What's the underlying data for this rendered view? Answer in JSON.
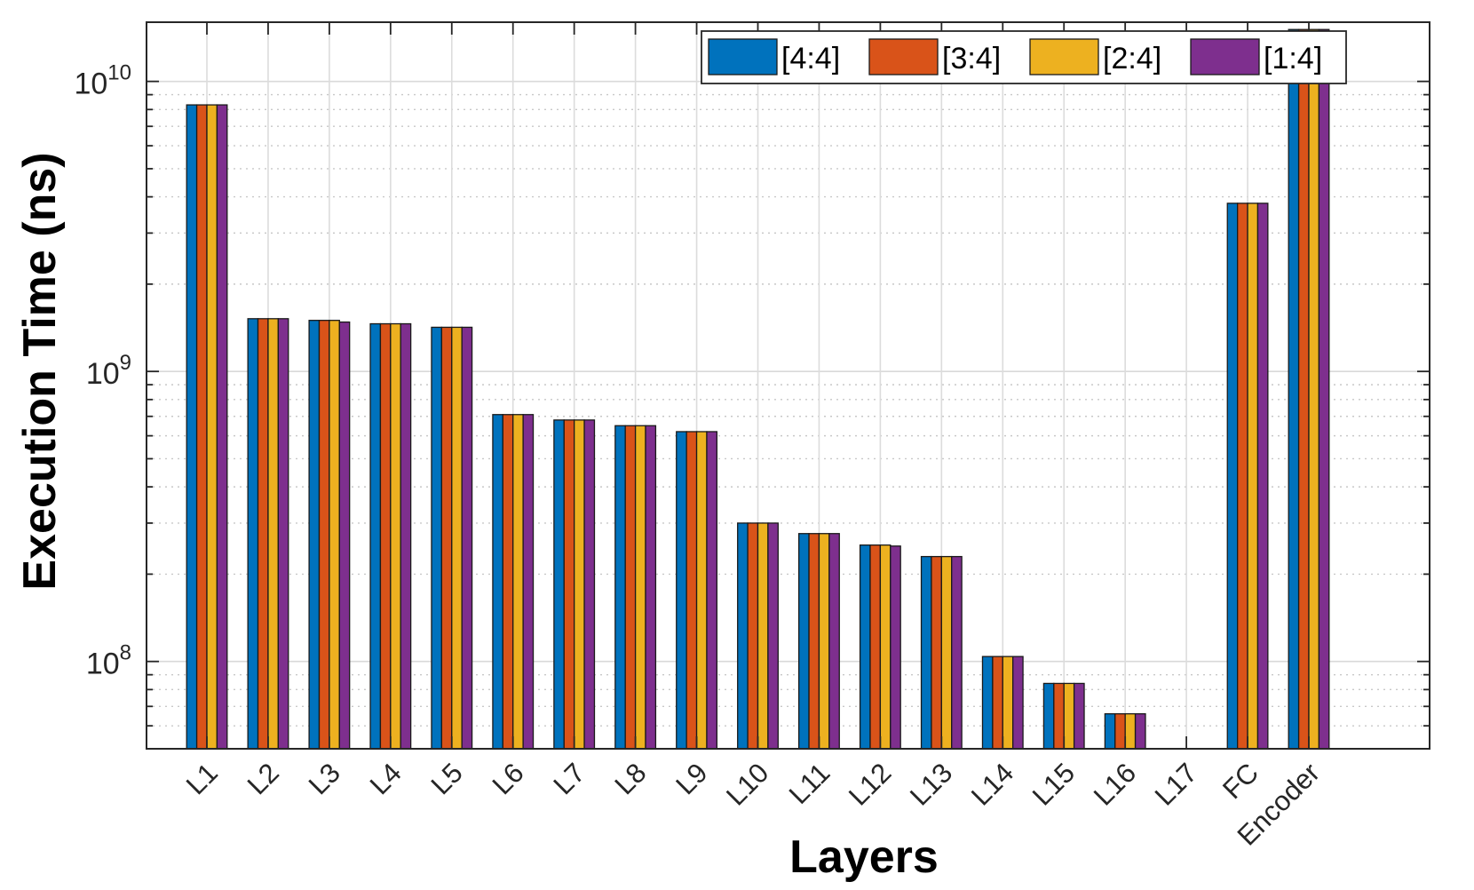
{
  "chart_data": {
    "type": "bar",
    "title": "",
    "xlabel": "Layers",
    "ylabel": "Execution Time (ns)",
    "yscale": "log",
    "ylim": [
      50000000,
      16000000000
    ],
    "ytick_labels": [
      {
        "value": 100000000,
        "base": "10",
        "exp": "8"
      },
      {
        "value": 1000000000,
        "base": "10",
        "exp": "9"
      },
      {
        "value": 10000000000,
        "base": "10",
        "exp": "10"
      }
    ],
    "grid": true,
    "legend_position": "top-right",
    "categories": [
      "L1",
      "L2",
      "L3",
      "L4",
      "L5",
      "L6",
      "L7",
      "L8",
      "L9",
      "L10",
      "L11",
      "L12",
      "L13",
      "L14",
      "L15",
      "L16",
      "L17",
      "FC",
      "Encoder"
    ],
    "series": [
      {
        "name": "[4:4]",
        "color": "#0072BD",
        "values": [
          8300000000,
          1520000000,
          1500000000,
          1460000000,
          1420000000,
          710000000,
          680000000,
          650000000,
          620000000,
          300000000,
          276000000,
          252000000,
          230000000,
          104000000,
          84000000,
          66000000,
          null,
          3800000000,
          15100000000
        ]
      },
      {
        "name": "[3:4]",
        "color": "#D95319",
        "values": [
          8300000000,
          1520000000,
          1500000000,
          1460000000,
          1420000000,
          710000000,
          680000000,
          650000000,
          620000000,
          300000000,
          276000000,
          252000000,
          230000000,
          104000000,
          84000000,
          66000000,
          null,
          3800000000,
          15100000000
        ]
      },
      {
        "name": "[2:4]",
        "color": "#EDB120",
        "values": [
          8300000000,
          1520000000,
          1500000000,
          1460000000,
          1420000000,
          710000000,
          680000000,
          650000000,
          620000000,
          300000000,
          276000000,
          252000000,
          230000000,
          104000000,
          84000000,
          66000000,
          null,
          3800000000,
          15100000000
        ]
      },
      {
        "name": "[1:4]",
        "color": "#7E2F8E",
        "values": [
          8300000000,
          1520000000,
          1480000000,
          1460000000,
          1420000000,
          710000000,
          680000000,
          650000000,
          620000000,
          300000000,
          276000000,
          250000000,
          230000000,
          104000000,
          84000000,
          66000000,
          null,
          3800000000,
          15100000000
        ]
      }
    ]
  }
}
